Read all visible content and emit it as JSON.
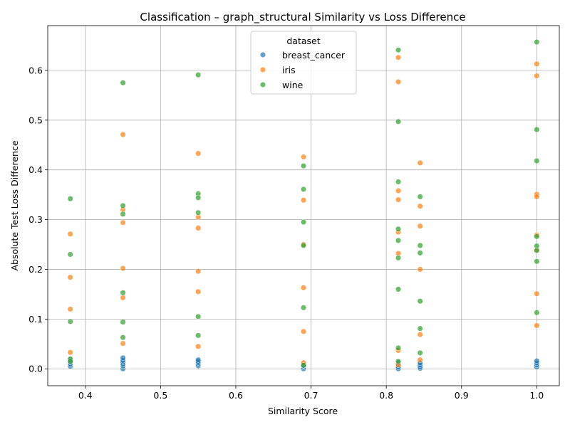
{
  "chart_data": {
    "type": "scatter",
    "title": "Classification – graph_structural Similarity vs Loss Difference",
    "xlabel": "Similarity Score",
    "ylabel": "Absolute Test Loss Difference",
    "xlim": [
      0.35,
      1.03
    ],
    "ylim": [
      -0.034,
      0.69
    ],
    "xticks": [
      0.4,
      0.5,
      0.6,
      0.7,
      0.8,
      0.9,
      1.0
    ],
    "xtick_labels": [
      "0.4",
      "0.5",
      "0.6",
      "0.7",
      "0.8",
      "0.9",
      "1.0"
    ],
    "yticks": [
      0.0,
      0.1,
      0.2,
      0.3,
      0.4,
      0.5,
      0.6
    ],
    "ytick_labels": [
      "0.0",
      "0.1",
      "0.2",
      "0.3",
      "0.4",
      "0.5",
      "0.6"
    ],
    "grid": true,
    "legend": {
      "title": "dataset",
      "placement": "upper center"
    },
    "series": [
      {
        "name": "breast_cancer",
        "color": "#1f77b4",
        "points": [
          [
            0.38,
            0.005
          ],
          [
            0.38,
            0.01
          ],
          [
            0.38,
            0.014
          ],
          [
            0.38,
            0.018
          ],
          [
            0.45,
            0.0
          ],
          [
            0.45,
            0.006
          ],
          [
            0.45,
            0.01
          ],
          [
            0.45,
            0.014
          ],
          [
            0.45,
            0.017
          ],
          [
            0.45,
            0.022
          ],
          [
            0.55,
            0.006
          ],
          [
            0.55,
            0.009
          ],
          [
            0.55,
            0.012
          ],
          [
            0.55,
            0.015
          ],
          [
            0.55,
            0.018
          ],
          [
            0.69,
            0.0
          ],
          [
            0.69,
            0.003
          ],
          [
            0.69,
            0.006
          ],
          [
            0.69,
            0.009
          ],
          [
            0.816,
            0.0
          ],
          [
            0.816,
            0.004
          ],
          [
            0.816,
            0.008
          ],
          [
            0.816,
            0.012
          ],
          [
            0.845,
            0.001
          ],
          [
            0.845,
            0.004
          ],
          [
            0.845,
            0.008
          ],
          [
            0.845,
            0.012
          ],
          [
            1.0,
            0.004
          ],
          [
            1.0,
            0.008
          ],
          [
            1.0,
            0.012
          ],
          [
            1.0,
            0.016
          ]
        ]
      },
      {
        "name": "iris",
        "color": "#ff7f0e",
        "points": [
          [
            0.38,
            0.271
          ],
          [
            0.38,
            0.184
          ],
          [
            0.38,
            0.12
          ],
          [
            0.38,
            0.033
          ],
          [
            0.45,
            0.471
          ],
          [
            0.45,
            0.32
          ],
          [
            0.45,
            0.294
          ],
          [
            0.45,
            0.202
          ],
          [
            0.45,
            0.143
          ],
          [
            0.45,
            0.051
          ],
          [
            0.55,
            0.433
          ],
          [
            0.55,
            0.305
          ],
          [
            0.55,
            0.283
          ],
          [
            0.55,
            0.196
          ],
          [
            0.55,
            0.155
          ],
          [
            0.55,
            0.045
          ],
          [
            0.69,
            0.426
          ],
          [
            0.69,
            0.339
          ],
          [
            0.69,
            0.25
          ],
          [
            0.69,
            0.163
          ],
          [
            0.69,
            0.075
          ],
          [
            0.69,
            0.012
          ],
          [
            0.816,
            0.626
          ],
          [
            0.816,
            0.577
          ],
          [
            0.816,
            0.358
          ],
          [
            0.816,
            0.34
          ],
          [
            0.816,
            0.275
          ],
          [
            0.816,
            0.232
          ],
          [
            0.816,
            0.037
          ],
          [
            0.816,
            0.008
          ],
          [
            0.845,
            0.414
          ],
          [
            0.845,
            0.327
          ],
          [
            0.845,
            0.287
          ],
          [
            0.845,
            0.2
          ],
          [
            0.845,
            0.069
          ],
          [
            0.845,
            0.018
          ],
          [
            1.0,
            0.613
          ],
          [
            1.0,
            0.589
          ],
          [
            1.0,
            0.351
          ],
          [
            1.0,
            0.346
          ],
          [
            1.0,
            0.269
          ],
          [
            1.0,
            0.239
          ],
          [
            1.0,
            0.151
          ],
          [
            1.0,
            0.087
          ]
        ]
      },
      {
        "name": "wine",
        "color": "#2ca02c",
        "points": [
          [
            0.38,
            0.342
          ],
          [
            0.38,
            0.23
          ],
          [
            0.38,
            0.095
          ],
          [
            0.38,
            0.02
          ],
          [
            0.38,
            0.015
          ],
          [
            0.45,
            0.575
          ],
          [
            0.45,
            0.328
          ],
          [
            0.45,
            0.311
          ],
          [
            0.45,
            0.153
          ],
          [
            0.45,
            0.094
          ],
          [
            0.45,
            0.063
          ],
          [
            0.55,
            0.591
          ],
          [
            0.55,
            0.352
          ],
          [
            0.55,
            0.344
          ],
          [
            0.55,
            0.314
          ],
          [
            0.55,
            0.105
          ],
          [
            0.55,
            0.067
          ],
          [
            0.69,
            0.408
          ],
          [
            0.69,
            0.361
          ],
          [
            0.69,
            0.295
          ],
          [
            0.69,
            0.248
          ],
          [
            0.69,
            0.123
          ],
          [
            0.69,
            0.007
          ],
          [
            0.816,
            0.641
          ],
          [
            0.816,
            0.497
          ],
          [
            0.816,
            0.376
          ],
          [
            0.816,
            0.281
          ],
          [
            0.816,
            0.258
          ],
          [
            0.816,
            0.223
          ],
          [
            0.816,
            0.16
          ],
          [
            0.816,
            0.042
          ],
          [
            0.816,
            0.015
          ],
          [
            0.845,
            0.346
          ],
          [
            0.845,
            0.248
          ],
          [
            0.845,
            0.233
          ],
          [
            0.845,
            0.136
          ],
          [
            0.845,
            0.081
          ],
          [
            0.845,
            0.032
          ],
          [
            1.0,
            0.657
          ],
          [
            1.0,
            0.481
          ],
          [
            1.0,
            0.418
          ],
          [
            1.0,
            0.266
          ],
          [
            1.0,
            0.247
          ],
          [
            1.0,
            0.238
          ],
          [
            1.0,
            0.216
          ],
          [
            1.0,
            0.113
          ]
        ]
      }
    ]
  }
}
